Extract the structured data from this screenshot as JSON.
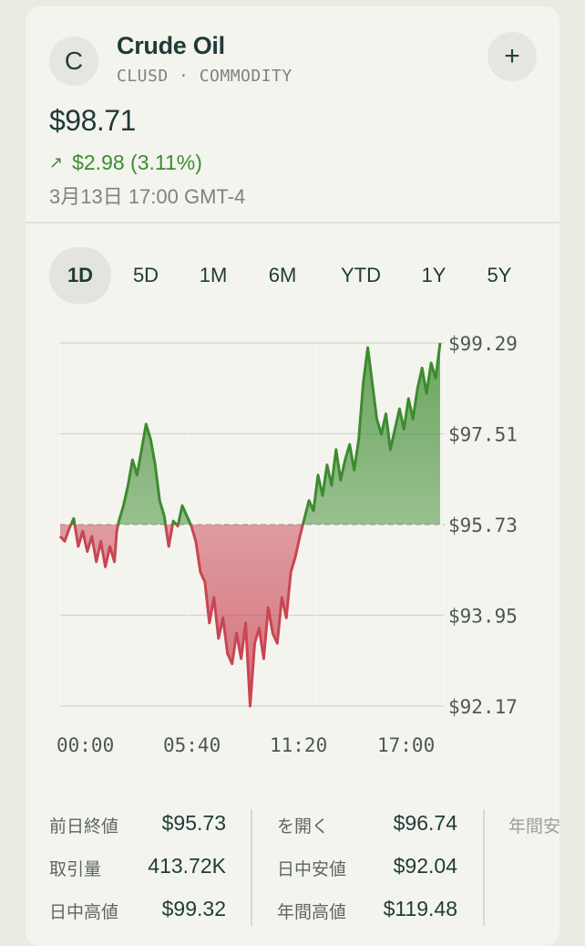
{
  "header": {
    "avatar_letter": "C",
    "title": "Crude Oil",
    "subtitle": "CLUSD · COMMODITY",
    "add_label": "+"
  },
  "quote": {
    "price": "$98.71",
    "change_arrow": "↗",
    "change": "$2.98 (3.11%)",
    "timestamp": "3月13日 17:00 GMT-4"
  },
  "tabs": [
    {
      "label": "1D",
      "active": true
    },
    {
      "label": "5D",
      "active": false
    },
    {
      "label": "1M",
      "active": false
    },
    {
      "label": "6M",
      "active": false
    },
    {
      "label": "YTD",
      "active": false
    },
    {
      "label": "1Y",
      "active": false
    },
    {
      "label": "5Y",
      "active": false
    }
  ],
  "chart_data": {
    "type": "area",
    "baseline": 95.73,
    "ylim": [
      92.17,
      99.29
    ],
    "y_ticks": [
      "$99.29",
      "$97.51",
      "$95.73",
      "$93.95",
      "$92.17"
    ],
    "y_tick_values": [
      99.29,
      97.51,
      95.73,
      93.95,
      92.17
    ],
    "x_ticks": [
      "00:00",
      "05:40",
      "11:20",
      "17:00"
    ],
    "x_tick_hours": [
      0,
      5.667,
      11.333,
      17
    ],
    "series": [
      {
        "x": [
          0,
          0.2,
          0.4,
          0.6,
          0.8,
          1.0,
          1.2,
          1.4,
          1.6,
          1.8,
          2.0,
          2.2,
          2.4,
          2.5,
          2.6,
          2.8,
          3.0,
          3.2,
          3.4,
          3.6,
          3.8,
          4.0,
          4.2,
          4.4,
          4.6,
          4.8,
          5.0,
          5.2,
          5.4,
          5.6,
          5.8,
          6.0,
          6.1,
          6.2,
          6.4,
          6.6,
          6.8,
          7.0,
          7.2,
          7.4,
          7.6,
          7.8,
          8.0,
          8.2,
          8.4,
          8.6,
          8.8,
          9.0,
          9.2,
          9.4,
          9.6,
          9.8,
          10.0,
          10.2,
          10.4,
          10.6,
          10.8,
          11.0,
          11.2,
          11.4,
          11.6,
          11.8,
          12.0,
          12.2,
          12.4,
          12.6,
          12.8,
          13.0,
          13.2,
          13.4,
          13.6,
          13.8,
          14.0,
          14.2,
          14.4,
          14.6,
          14.8,
          15.0,
          15.2,
          15.4,
          15.6,
          15.8,
          16.0,
          16.2,
          16.4,
          16.6,
          16.8
        ],
        "values": [
          95.5,
          95.4,
          95.65,
          95.85,
          95.3,
          95.6,
          95.2,
          95.5,
          95.0,
          95.4,
          94.9,
          95.3,
          95.0,
          95.6,
          95.8,
          96.1,
          96.5,
          97.0,
          96.7,
          97.2,
          97.7,
          97.4,
          96.9,
          96.2,
          95.9,
          95.3,
          95.8,
          95.7,
          96.1,
          95.9,
          95.7,
          95.4,
          95.1,
          94.8,
          94.6,
          93.8,
          94.3,
          93.5,
          93.9,
          93.2,
          93.0,
          93.6,
          93.1,
          93.8,
          92.17,
          93.4,
          93.7,
          93.1,
          94.1,
          93.6,
          93.4,
          94.3,
          93.9,
          94.8,
          95.1,
          95.5,
          95.85,
          96.2,
          96.0,
          96.7,
          96.3,
          96.9,
          96.5,
          97.2,
          96.6,
          97.0,
          97.3,
          96.8,
          97.4,
          98.5,
          99.2,
          98.5,
          97.8,
          97.5,
          97.9,
          97.2,
          97.6,
          98.0,
          97.6,
          98.2,
          97.8,
          98.4,
          98.8,
          98.3,
          98.9,
          98.6,
          99.29
        ]
      }
    ],
    "up_color": "#3d8b2f",
    "down_color": "#c94552"
  },
  "stats": {
    "col1": [
      {
        "label": "前日終値",
        "value": "$95.73"
      },
      {
        "label": "取引量",
        "value": "413.72K"
      },
      {
        "label": "日中高値",
        "value": "$99.32"
      }
    ],
    "col2": [
      {
        "label": "を開く",
        "value": "$96.74"
      },
      {
        "label": "日中安値",
        "value": "$92.04"
      },
      {
        "label": "年間高値",
        "value": "$119.48"
      }
    ],
    "col3_label": "年間安"
  }
}
